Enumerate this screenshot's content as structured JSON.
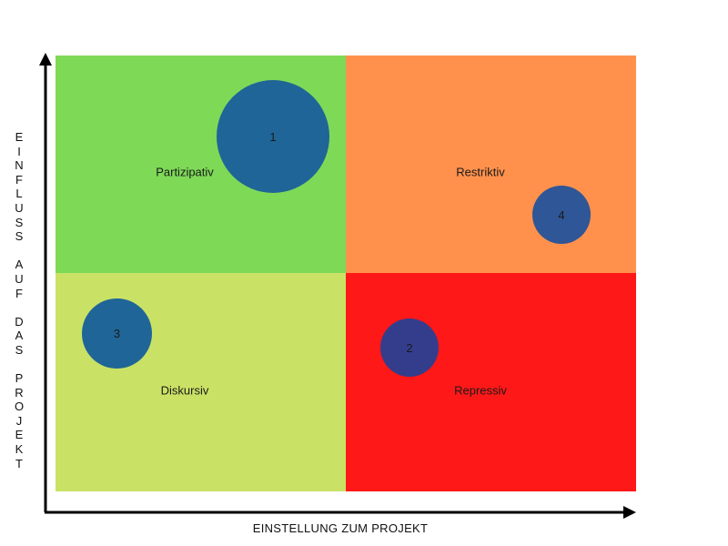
{
  "quadrants": {
    "top_left": {
      "label": "Partizipativ",
      "color": "#7ED957"
    },
    "top_right": {
      "label": "Restriktiv",
      "color": "#FF914D"
    },
    "bottom_left": {
      "label": "Diskursiv",
      "color": "#C9E265"
    },
    "bottom_right": {
      "label": "Repressiv",
      "color": "#FF1818"
    }
  },
  "stakeholders": [
    {
      "id": "1",
      "color": "#1F6597"
    },
    {
      "id": "2",
      "color": "#343D8C"
    },
    {
      "id": "3",
      "color": "#1F6597"
    },
    {
      "id": "4",
      "color": "#2F5697"
    }
  ],
  "axes": {
    "x_label": "EINSTELLUNG ZUM PROJEKT",
    "y_label": "EINFLUSS AUF DAS PROJEKT",
    "color": "#000000"
  }
}
